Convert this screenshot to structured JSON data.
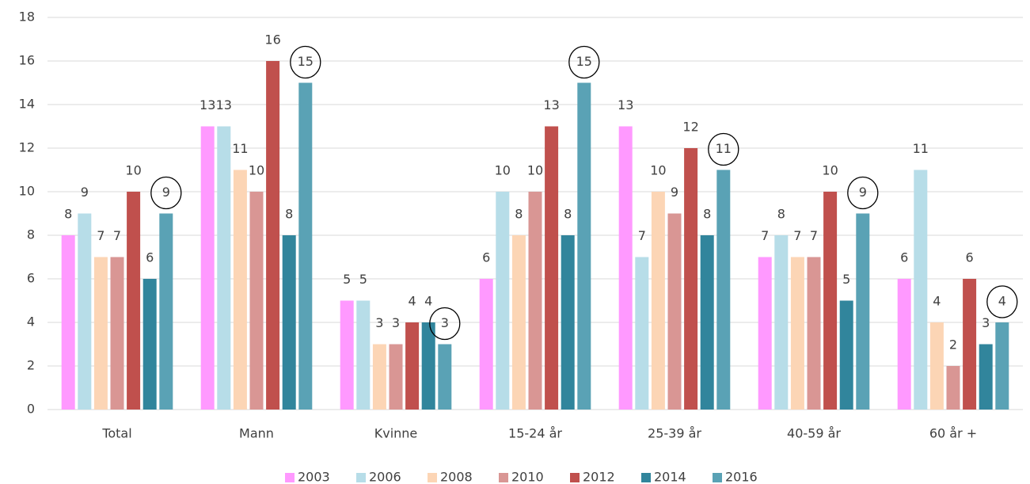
{
  "chart_data": {
    "type": "bar",
    "categories": [
      "Total",
      "Mann",
      "Kvinne",
      "15-24 år",
      "25-39 år",
      "40-59 år",
      "60 år +"
    ],
    "series": [
      {
        "name": "2003",
        "color": "#ff99ff",
        "values": [
          8,
          13,
          5,
          6,
          13,
          7,
          6
        ]
      },
      {
        "name": "2006",
        "color": "#b7dde8",
        "values": [
          9,
          13,
          5,
          10,
          7,
          8,
          11
        ]
      },
      {
        "name": "2008",
        "color": "#fcd5b5",
        "values": [
          7,
          11,
          3,
          8,
          10,
          7,
          4
        ]
      },
      {
        "name": "2010",
        "color": "#d99694",
        "values": [
          7,
          10,
          3,
          10,
          9,
          7,
          2
        ]
      },
      {
        "name": "2012",
        "color": "#c0504d",
        "values": [
          10,
          16,
          4,
          13,
          12,
          10,
          6
        ]
      },
      {
        "name": "2014",
        "color": "#31859c",
        "values": [
          6,
          8,
          4,
          8,
          8,
          5,
          3
        ]
      },
      {
        "name": "2016",
        "color": "#5aa2b5",
        "values": [
          9,
          15,
          3,
          15,
          11,
          9,
          4
        ]
      }
    ],
    "ylim": [
      0,
      18
    ],
    "yticks": [
      0,
      2,
      4,
      6,
      8,
      10,
      12,
      14,
      16,
      18
    ],
    "grid": true,
    "legend": "bottom"
  }
}
